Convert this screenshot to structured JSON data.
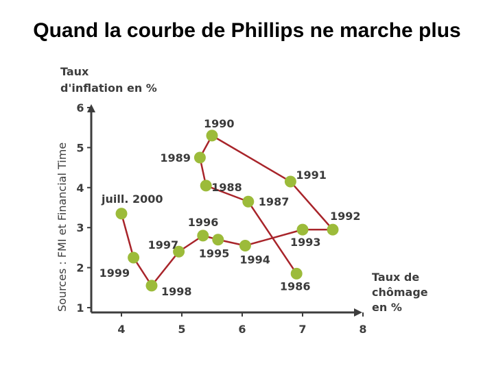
{
  "slide": {
    "title": "Quand la courbe de Phillips ne marche plus"
  },
  "chart_data": {
    "type": "line",
    "title": "",
    "ylabel_line1": "Taux",
    "ylabel_line2": "d'inflation en %",
    "xlabel_line1": "Taux de",
    "xlabel_line2": "chômage",
    "xlabel_line3": "en %",
    "source": "Sources : FMI et Financial Time",
    "xlim": [
      3.5,
      8
    ],
    "ylim": [
      1,
      6
    ],
    "x_ticks": [
      4,
      5,
      6,
      7,
      8
    ],
    "y_ticks": [
      1,
      2,
      3,
      4,
      5,
      6
    ],
    "grid": false,
    "series_color": "#a8242a",
    "marker_color": "#9cbb3a",
    "paths": [
      [
        "1986",
        "1987",
        "1988",
        "1989",
        "1990",
        "1991",
        "1992",
        "1993",
        "1994",
        "1995",
        "1996",
        "1997",
        "1998",
        "1999",
        "juill. 2000"
      ]
    ],
    "points": [
      {
        "label": "1986",
        "x": 6.9,
        "y": 1.85
      },
      {
        "label": "1987",
        "x": 6.1,
        "y": 3.65
      },
      {
        "label": "1988",
        "x": 5.4,
        "y": 4.05
      },
      {
        "label": "1989",
        "x": 5.3,
        "y": 4.75
      },
      {
        "label": "1990",
        "x": 5.5,
        "y": 5.3
      },
      {
        "label": "1991",
        "x": 6.8,
        "y": 4.15
      },
      {
        "label": "1992",
        "x": 7.5,
        "y": 2.95
      },
      {
        "label": "1993",
        "x": 7.0,
        "y": 2.95
      },
      {
        "label": "1994",
        "x": 6.05,
        "y": 2.55
      },
      {
        "label": "1995",
        "x": 5.6,
        "y": 2.7
      },
      {
        "label": "1996",
        "x": 5.35,
        "y": 2.8
      },
      {
        "label": "1997",
        "x": 4.95,
        "y": 2.4
      },
      {
        "label": "1998",
        "x": 4.5,
        "y": 1.55
      },
      {
        "label": "1999",
        "x": 4.2,
        "y": 2.25
      },
      {
        "label": "juill. 2000",
        "x": 4.0,
        "y": 3.35
      }
    ]
  }
}
